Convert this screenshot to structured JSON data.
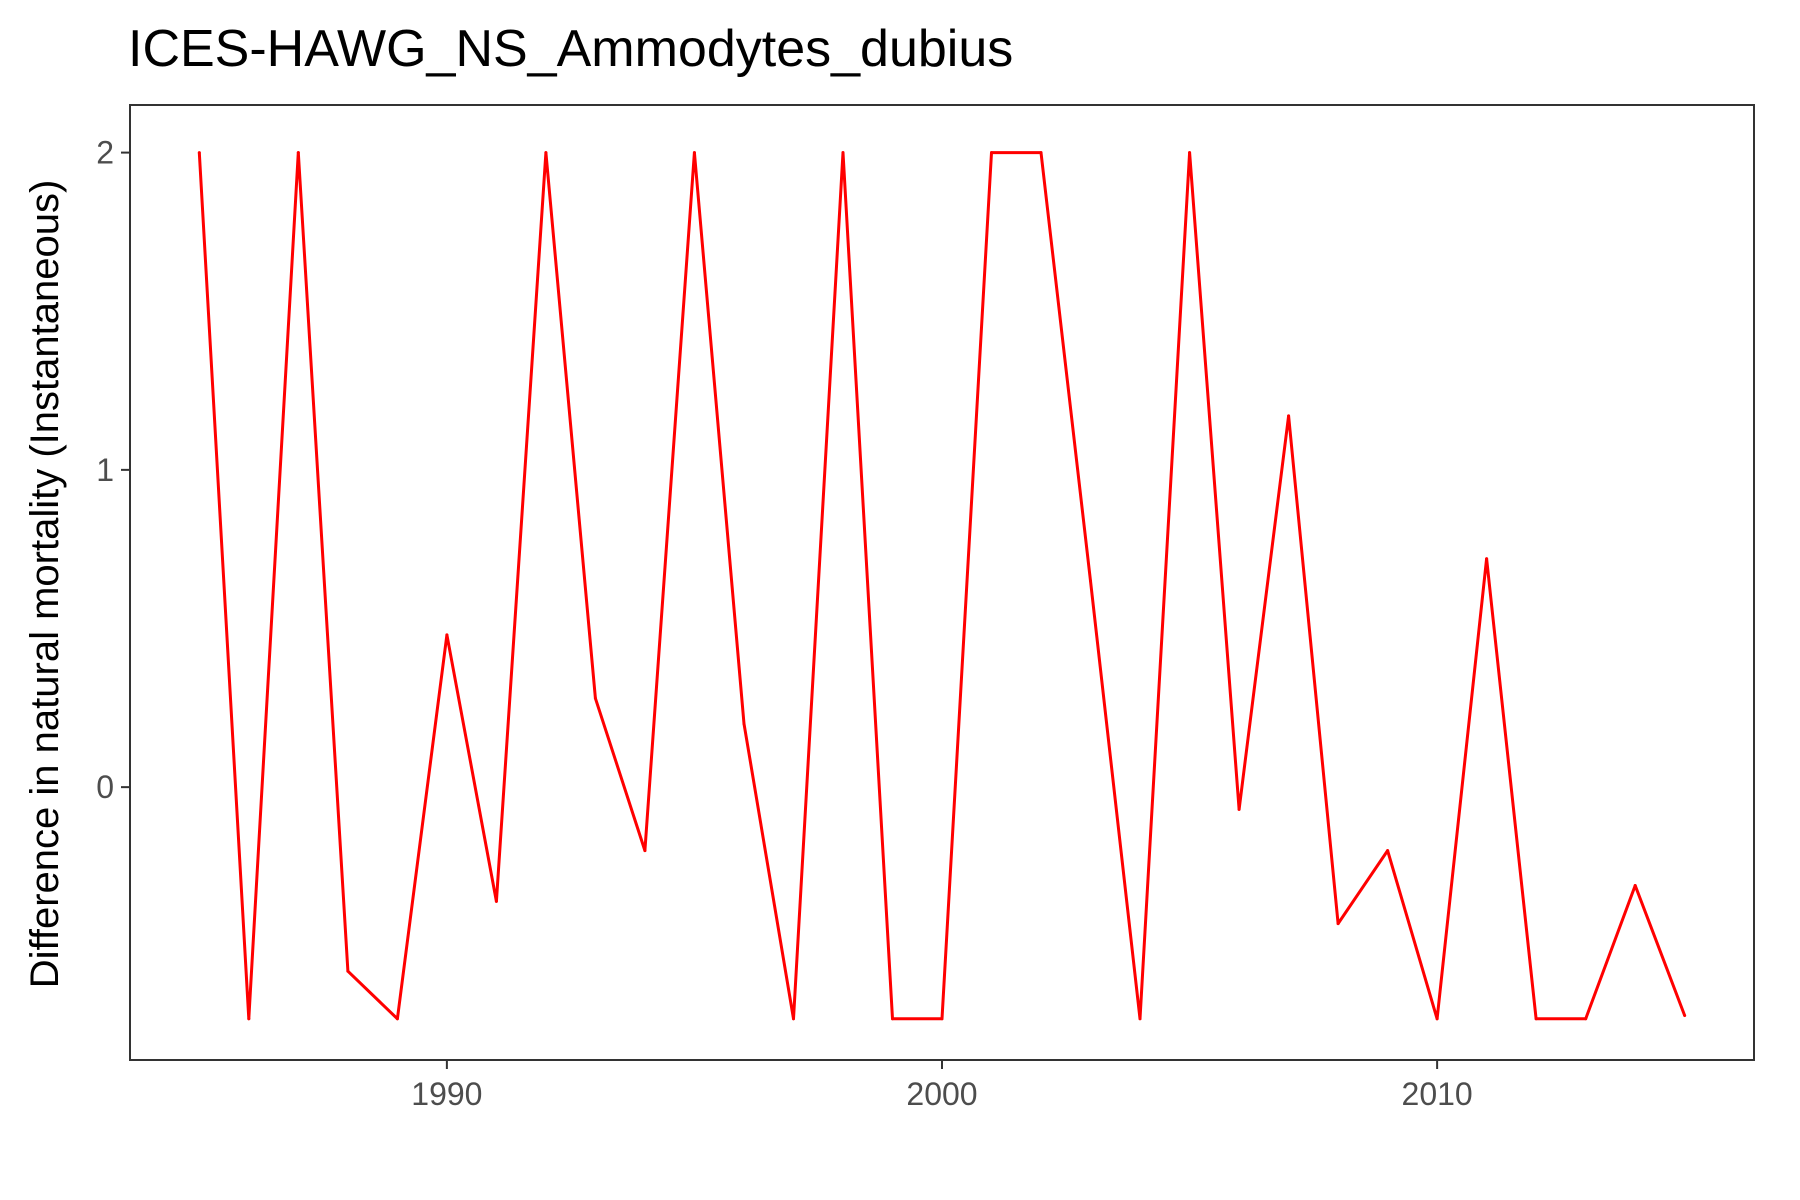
{
  "chart_data": {
    "type": "line",
    "title": "ICES-HAWG_NS_Ammodytes_dubius",
    "xlabel": "",
    "ylabel": "Difference in natural mortality (Instantaneous)",
    "xlim": [
      1983.6,
      2016.4
    ],
    "ylim": [
      -0.86,
      2.15
    ],
    "x_ticks": [
      1990,
      2000,
      2010
    ],
    "y_ticks": [
      0,
      1,
      2
    ],
    "grid": false,
    "legend": "none",
    "line_color": "#ff0000",
    "series": [
      {
        "x": [
          1985,
          1986,
          1987,
          1988,
          1989,
          1990,
          1991,
          1992,
          1993,
          1994,
          1995,
          1996,
          1997,
          1998,
          1999,
          2000,
          2001,
          2002,
          2003,
          2004,
          2005,
          2006,
          2007,
          2008,
          2009,
          2010,
          2011,
          2012,
          2013,
          2014,
          2015
        ],
        "values": [
          2.0,
          -0.73,
          2.0,
          -0.58,
          -0.73,
          0.48,
          -0.36,
          2.0,
          0.28,
          -0.2,
          2.0,
          0.2,
          -0.73,
          2.0,
          -0.73,
          -0.73,
          2.0,
          2.0,
          0.65,
          -0.73,
          2.0,
          -0.07,
          1.17,
          -0.43,
          -0.2,
          -0.73,
          0.72,
          -0.73,
          -0.73,
          -0.31,
          -0.72
        ]
      }
    ]
  }
}
